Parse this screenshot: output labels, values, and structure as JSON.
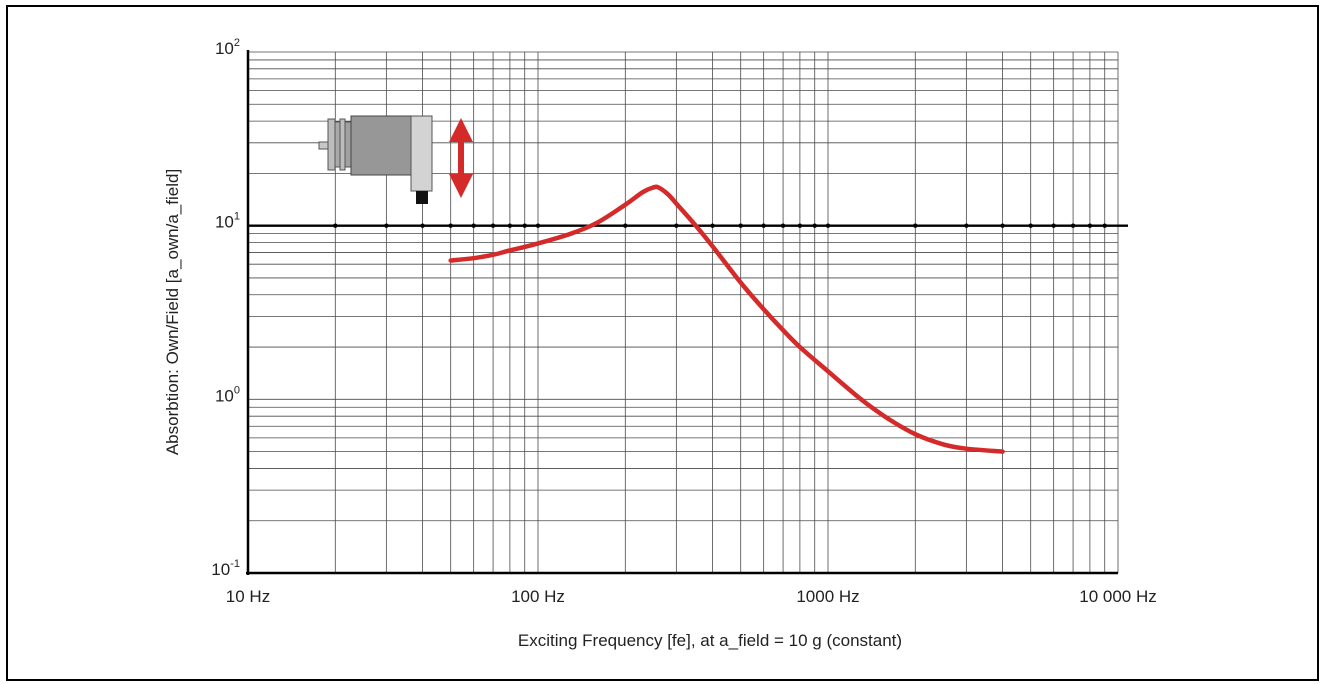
{
  "chart_data": {
    "type": "line",
    "title": "",
    "xlabel": "Exciting Frequency [fe], at a_field = 10 g (constant)",
    "ylabel": "Absorbtion: Own/Field [a_own/a_field]",
    "xscale": "log",
    "yscale": "log",
    "xlim": [
      10,
      10000
    ],
    "ylim": [
      0.1,
      100
    ],
    "grid": true,
    "reference_line": {
      "y": 10,
      "label": ""
    },
    "x_ticks": [
      {
        "value": 10,
        "label": "10 Hz"
      },
      {
        "value": 100,
        "label": "100 Hz"
      },
      {
        "value": 1000,
        "label": "1000 Hz"
      },
      {
        "value": 10000,
        "label": "10 000 Hz"
      }
    ],
    "y_ticks": [
      {
        "value": 100,
        "base": "10",
        "exp": "2"
      },
      {
        "value": 10,
        "base": "10",
        "exp": "1"
      },
      {
        "value": 1,
        "base": "10",
        "exp": "0"
      },
      {
        "value": 0.1,
        "base": "10",
        "exp": "-1"
      }
    ],
    "series": [
      {
        "color": "#d42a2a",
        "x": [
          50,
          60,
          70,
          80,
          100,
          130,
          160,
          200,
          230,
          250,
          260,
          280,
          300,
          350,
          400,
          500,
          600,
          700,
          800,
          1000,
          1300,
          1600,
          2000,
          2500,
          3000,
          4000
        ],
        "y": [
          6.3,
          6.5,
          6.8,
          7.2,
          7.9,
          9.0,
          10.4,
          13.2,
          15.6,
          16.6,
          16.6,
          15.2,
          13.4,
          10.0,
          7.6,
          4.7,
          3.3,
          2.5,
          2.0,
          1.45,
          1.0,
          0.78,
          0.63,
          0.55,
          0.52,
          0.5
        ]
      }
    ]
  },
  "illustration": {
    "sensor_icon": "vibration-sensor-icon",
    "arrow_icon": "vertical-double-arrow-icon",
    "arrow_color": "#d42a2a"
  }
}
